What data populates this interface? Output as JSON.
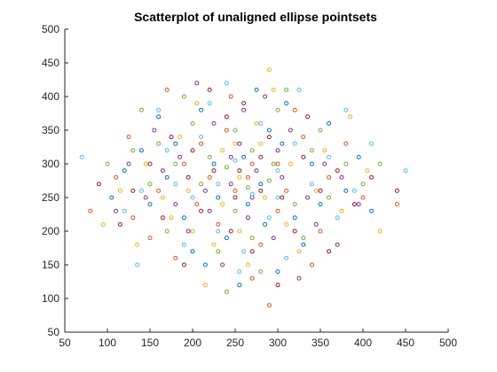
{
  "chart_data": {
    "type": "scatter",
    "title": "Scatterplot of unaligned ellipse pointsets",
    "xlabel": "",
    "ylabel": "",
    "xlim": [
      50,
      500
    ],
    "ylim": [
      50,
      500
    ],
    "xticks": [
      50,
      100,
      150,
      200,
      250,
      300,
      350,
      400,
      450,
      500
    ],
    "yticks": [
      50,
      100,
      150,
      200,
      250,
      300,
      350,
      400,
      450,
      500
    ],
    "grid": false,
    "legend": "none",
    "marker": "circle-open",
    "series": [
      {
        "color": "#0072BD",
        "points": [
          [
            260,
            310
          ],
          [
            280,
            270
          ],
          [
            230,
            250
          ],
          [
            180,
            330
          ],
          [
            320,
            220
          ],
          [
            210,
            380
          ],
          [
            150,
            240
          ],
          [
            340,
            300
          ],
          [
            290,
            350
          ],
          [
            120,
            290
          ],
          [
            380,
            260
          ],
          [
            240,
            190
          ],
          [
            300,
            140
          ],
          [
            200,
            170
          ],
          [
            360,
            360
          ],
          [
            170,
            280
          ],
          [
            265,
            240
          ],
          [
            225,
            300
          ],
          [
            310,
            390
          ],
          [
            140,
            320
          ],
          [
            395,
            310
          ],
          [
            255,
            120
          ],
          [
            330,
            180
          ],
          [
            190,
            220
          ],
          [
            275,
            410
          ],
          [
            105,
            250
          ],
          [
            410,
            230
          ],
          [
            215,
            150
          ],
          [
            350,
            240
          ],
          [
            285,
            210
          ],
          [
            160,
            370
          ],
          [
            305,
            330
          ]
        ]
      },
      {
        "color": "#D95319",
        "points": [
          [
            250,
            260
          ],
          [
            270,
            300
          ],
          [
            220,
            280
          ],
          [
            310,
            260
          ],
          [
            190,
            300
          ],
          [
            330,
            340
          ],
          [
            160,
            260
          ],
          [
            280,
            180
          ],
          [
            240,
            350
          ],
          [
            360,
            280
          ],
          [
            130,
            220
          ],
          [
            300,
            230
          ],
          [
            210,
            330
          ],
          [
            270,
            130
          ],
          [
            380,
            330
          ],
          [
            150,
            190
          ],
          [
            245,
            400
          ],
          [
            320,
            380
          ],
          [
            180,
            160
          ],
          [
            400,
            250
          ],
          [
            110,
            280
          ],
          [
            290,
            90
          ],
          [
            350,
            200
          ],
          [
            230,
            210
          ],
          [
            125,
            340
          ],
          [
            265,
            280
          ],
          [
            205,
            240
          ],
          [
            340,
            150
          ],
          [
            170,
            410
          ],
          [
            300,
            300
          ],
          [
            440,
            240
          ],
          [
            80,
            230
          ]
        ]
      },
      {
        "color": "#EDB120",
        "points": [
          [
            255,
            280
          ],
          [
            285,
            250
          ],
          [
            235,
            320
          ],
          [
            195,
            260
          ],
          [
            315,
            300
          ],
          [
            275,
            360
          ],
          [
            175,
            220
          ],
          [
            345,
            260
          ],
          [
            225,
            180
          ],
          [
            295,
            410
          ],
          [
            145,
            300
          ],
          [
            375,
            230
          ],
          [
            205,
            390
          ],
          [
            325,
            170
          ],
          [
            255,
            200
          ],
          [
            115,
            260
          ],
          [
            405,
            290
          ],
          [
            185,
            340
          ],
          [
            265,
            150
          ],
          [
            355,
            320
          ],
          [
            135,
            180
          ],
          [
            290,
            440
          ],
          [
            215,
            120
          ],
          [
            385,
            370
          ],
          [
            235,
            240
          ],
          [
            310,
            210
          ],
          [
            165,
            250
          ],
          [
            250,
            330
          ],
          [
            420,
            200
          ],
          [
            95,
            210
          ],
          [
            280,
            330
          ],
          [
            200,
            200
          ]
        ]
      },
      {
        "color": "#7E2F8E",
        "points": [
          [
            245,
            270
          ],
          [
            275,
            290
          ],
          [
            215,
            260
          ],
          [
            305,
            280
          ],
          [
            185,
            310
          ],
          [
            335,
            250
          ],
          [
            255,
            330
          ],
          [
            165,
            290
          ],
          [
            295,
            190
          ],
          [
            225,
            360
          ],
          [
            355,
            300
          ],
          [
            145,
            250
          ],
          [
            265,
            220
          ],
          [
            315,
            350
          ],
          [
            195,
            200
          ],
          [
            375,
            280
          ],
          [
            235,
            150
          ],
          [
            285,
            400
          ],
          [
            125,
            300
          ],
          [
            395,
            240
          ],
          [
            205,
            420
          ],
          [
            325,
            130
          ],
          [
            245,
            310
          ],
          [
            155,
            350
          ],
          [
            345,
            210
          ],
          [
            270,
            250
          ],
          [
            180,
            240
          ],
          [
            300,
            320
          ],
          [
            220,
            230
          ],
          [
            370,
            180
          ],
          [
            110,
            230
          ],
          [
            260,
            380
          ]
        ]
      },
      {
        "color": "#77AC30",
        "points": [
          [
            265,
            265
          ],
          [
            240,
            295
          ],
          [
            290,
            275
          ],
          [
            210,
            270
          ],
          [
            320,
            240
          ],
          [
            250,
            350
          ],
          [
            180,
            300
          ],
          [
            340,
            320
          ],
          [
            270,
            190
          ],
          [
            200,
            360
          ],
          [
            360,
            250
          ],
          [
            150,
            270
          ],
          [
            300,
            380
          ],
          [
            230,
            170
          ],
          [
            380,
            300
          ],
          [
            130,
            320
          ],
          [
            280,
            140
          ],
          [
            190,
            400
          ],
          [
            400,
            270
          ],
          [
            170,
            200
          ],
          [
            310,
            410
          ],
          [
            250,
            230
          ],
          [
            140,
            380
          ],
          [
            330,
            190
          ],
          [
            220,
            310
          ],
          [
            295,
            300
          ],
          [
            160,
            330
          ],
          [
            350,
            350
          ],
          [
            240,
            110
          ],
          [
            420,
            300
          ],
          [
            100,
            300
          ],
          [
            270,
            320
          ]
        ]
      },
      {
        "color": "#4DBEEE",
        "points": [
          [
            270,
            255
          ],
          [
            250,
            305
          ],
          [
            230,
            270
          ],
          [
            300,
            290
          ],
          [
            200,
            250
          ],
          [
            320,
            330
          ],
          [
            260,
            170
          ],
          [
            170,
            320
          ],
          [
            340,
            270
          ],
          [
            220,
            390
          ],
          [
            140,
            260
          ],
          [
            360,
            310
          ],
          [
            280,
            360
          ],
          [
            190,
            180
          ],
          [
            390,
            260
          ],
          [
            240,
            420
          ],
          [
            120,
            230
          ],
          [
            310,
            160
          ],
          [
            210,
            340
          ],
          [
            370,
            220
          ],
          [
            255,
            140
          ],
          [
            160,
            380
          ],
          [
            410,
            330
          ],
          [
            290,
            220
          ],
          [
            135,
            150
          ],
          [
            325,
            410
          ],
          [
            230,
            200
          ],
          [
            380,
            380
          ],
          [
            180,
            270
          ],
          [
            450,
            290
          ],
          [
            70,
            310
          ],
          [
            300,
            250
          ]
        ]
      },
      {
        "color": "#A2142F",
        "points": [
          [
            255,
            290
          ],
          [
            280,
            260
          ],
          [
            225,
            290
          ],
          [
            305,
            250
          ],
          [
            195,
            280
          ],
          [
            330,
            310
          ],
          [
            245,
            200
          ],
          [
            175,
            340
          ],
          [
            350,
            260
          ],
          [
            210,
            230
          ],
          [
            290,
            340
          ],
          [
            150,
            300
          ],
          [
            370,
            290
          ],
          [
            260,
            390
          ],
          [
            190,
            150
          ],
          [
            320,
            200
          ],
          [
            130,
            260
          ],
          [
            240,
            370
          ],
          [
            390,
            240
          ],
          [
            165,
            220
          ],
          [
            300,
            120
          ],
          [
            220,
            410
          ],
          [
            410,
            280
          ],
          [
            270,
            170
          ],
          [
            115,
            210
          ],
          [
            335,
            370
          ],
          [
            200,
            320
          ],
          [
            360,
            170
          ],
          [
            250,
            250
          ],
          [
            440,
            260
          ],
          [
            90,
            270
          ],
          [
            280,
            310
          ]
        ]
      }
    ]
  }
}
